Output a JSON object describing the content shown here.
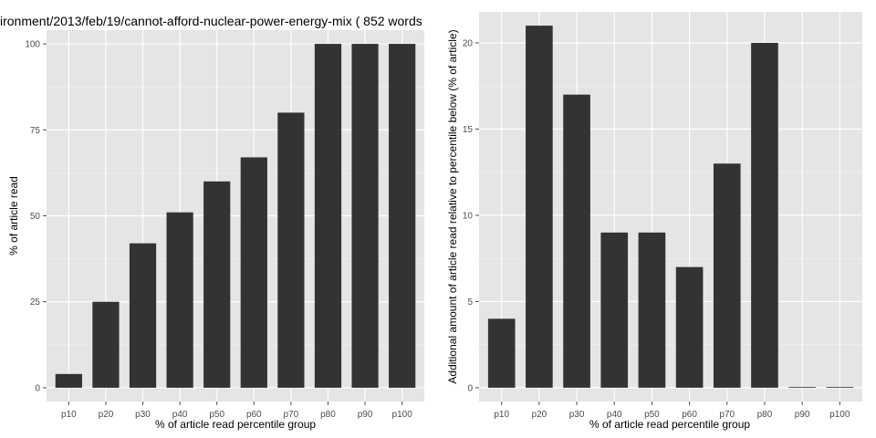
{
  "chart_data": [
    {
      "type": "bar",
      "title": "ironment/2013/feb/19/cannot-afford-nuclear-power-energy-mix ( 852 words",
      "xlabel": "% of article read percentile group",
      "ylabel": "% of article read",
      "categories": [
        "p10",
        "p20",
        "p30",
        "p40",
        "p50",
        "p60",
        "p70",
        "p80",
        "p90",
        "p100"
      ],
      "values": [
        4,
        25,
        42,
        51,
        60,
        67,
        80,
        100,
        100,
        100
      ],
      "ylim": [
        -4,
        104
      ],
      "yticks": [
        0,
        25,
        50,
        75,
        100
      ],
      "grid": true,
      "bar_color": "#333333",
      "panel_background": "#e5e5e5"
    },
    {
      "type": "bar",
      "title": "",
      "xlabel": "% of article read percentile group",
      "ylabel": "Additional amount of article read relative to percentile below (% of article)",
      "categories": [
        "p10",
        "p20",
        "p30",
        "p40",
        "p50",
        "p60",
        "p70",
        "p80",
        "p90",
        "p100"
      ],
      "values": [
        4,
        21,
        17,
        9,
        9,
        7,
        13,
        20,
        0,
        0
      ],
      "ylim": [
        -0.8,
        21.8
      ],
      "yticks": [
        0,
        5,
        10,
        15,
        20
      ],
      "grid": true,
      "bar_color": "#333333",
      "panel_background": "#e5e5e5"
    }
  ]
}
